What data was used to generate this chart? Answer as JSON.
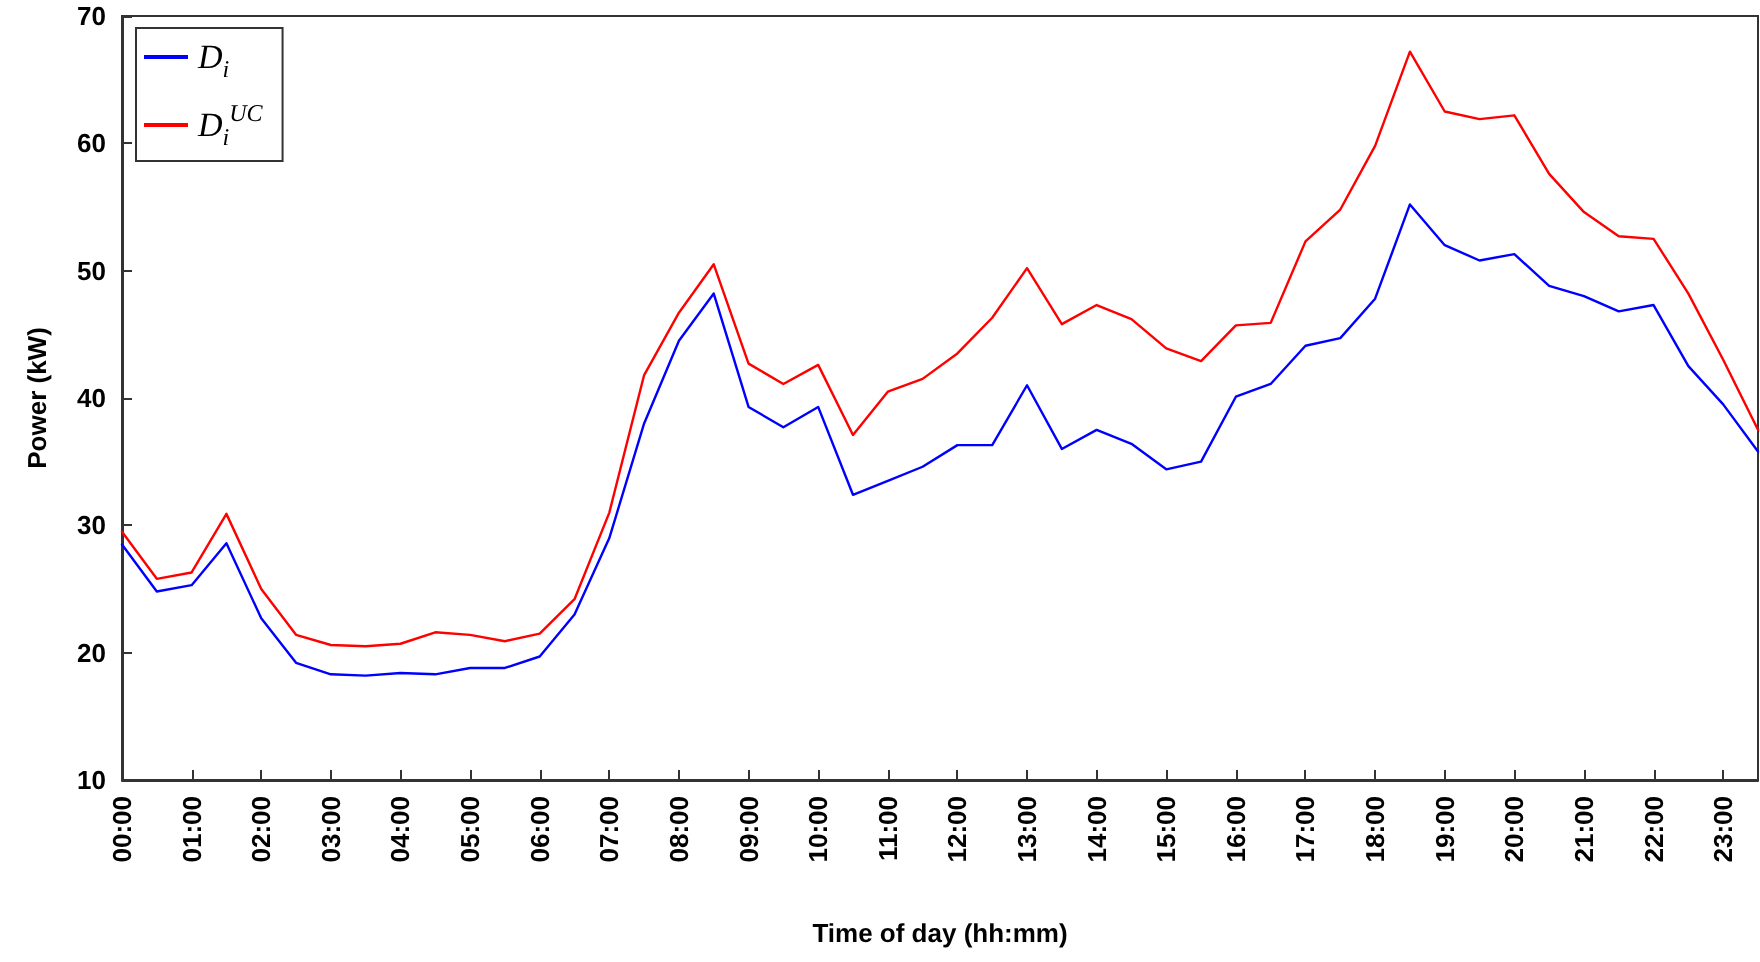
{
  "chart_data": {
    "type": "line",
    "xlabel": "Time of day (hh:mm)",
    "ylabel": "Power (kW)",
    "x": [
      0,
      0.5,
      1,
      1.5,
      2,
      2.5,
      3,
      3.5,
      4,
      4.5,
      5,
      5.5,
      6,
      6.5,
      7,
      7.5,
      8,
      8.5,
      9,
      9.5,
      10,
      10.5,
      11,
      11.5,
      12,
      12.5,
      13,
      13.5,
      14,
      14.5,
      15,
      15.5,
      16,
      16.5,
      17,
      17.5,
      18,
      18.5,
      19,
      19.5,
      20,
      20.5,
      21,
      21.5,
      22,
      22.5,
      23,
      23.5
    ],
    "series": [
      {
        "name": "D$_{i}$",
        "color": "#0000ff",
        "values": [
          28.5,
          24.8,
          25.3,
          28.6,
          22.7,
          19.2,
          18.3,
          18.2,
          18.4,
          18.3,
          18.8,
          18.8,
          19.7,
          23,
          29,
          38,
          44.5,
          48.2,
          39.3,
          37.7,
          39.3,
          32.4,
          33.5,
          34.6,
          36.3,
          36.3,
          41,
          36,
          37.5,
          36.4,
          34.4,
          35,
          40.1,
          41.1,
          44.1,
          44.7,
          47.8,
          55.2,
          52,
          50.8,
          51.3,
          48.8,
          48,
          46.8,
          47.3,
          42.5,
          39.5,
          35.8
        ]
      },
      {
        "name": "D$_{i}$$^{UC}$",
        "color": "#ff0000",
        "values": [
          29.5,
          25.8,
          26.3,
          30.9,
          25,
          21.4,
          20.6,
          20.5,
          20.7,
          21.6,
          21.4,
          20.9,
          21.5,
          24.2,
          31,
          41.8,
          46.7,
          50.5,
          42.7,
          41.1,
          42.6,
          37.1,
          40.5,
          41.5,
          43.5,
          46.3,
          50.2,
          45.8,
          47.3,
          46.2,
          43.9,
          42.9,
          45.7,
          45.9,
          52.3,
          54.8,
          59.8,
          67.2,
          62.5,
          61.9,
          62.2,
          57.6,
          54.6,
          52.7,
          52.5,
          48.2,
          43,
          37.5
        ]
      }
    ],
    "xlim": [
      0,
      23.5
    ],
    "xticks": [
      {
        "value": 0,
        "label": "00:00"
      },
      {
        "value": 1,
        "label": "01:00"
      },
      {
        "value": 2,
        "label": "02:00"
      },
      {
        "value": 3,
        "label": "03:00"
      },
      {
        "value": 4,
        "label": "04:00"
      },
      {
        "value": 5,
        "label": "05:00"
      },
      {
        "value": 6,
        "label": "06:00"
      },
      {
        "value": 7,
        "label": "07:00"
      },
      {
        "value": 8,
        "label": "08:00"
      },
      {
        "value": 9,
        "label": "09:00"
      },
      {
        "value": 10,
        "label": "10:00"
      },
      {
        "value": 11,
        "label": "11:00"
      },
      {
        "value": 12,
        "label": "12:00"
      },
      {
        "value": 13,
        "label": "13:00"
      },
      {
        "value": 14,
        "label": "14:00"
      },
      {
        "value": 15,
        "label": "15:00"
      },
      {
        "value": 16,
        "label": "16:00"
      },
      {
        "value": 17,
        "label": "17:00"
      },
      {
        "value": 18,
        "label": "18:00"
      },
      {
        "value": 19,
        "label": "19:00"
      },
      {
        "value": 20,
        "label": "20:00"
      },
      {
        "value": 21,
        "label": "21:00"
      },
      {
        "value": 22,
        "label": "22:00"
      },
      {
        "value": 23,
        "label": "23:00"
      }
    ],
    "ylim": [
      10,
      70
    ],
    "yticks": [
      10,
      20,
      30,
      40,
      50,
      60,
      70
    ],
    "grid": false,
    "legend": "top left",
    "marker": "none",
    "line_style": "solid"
  }
}
